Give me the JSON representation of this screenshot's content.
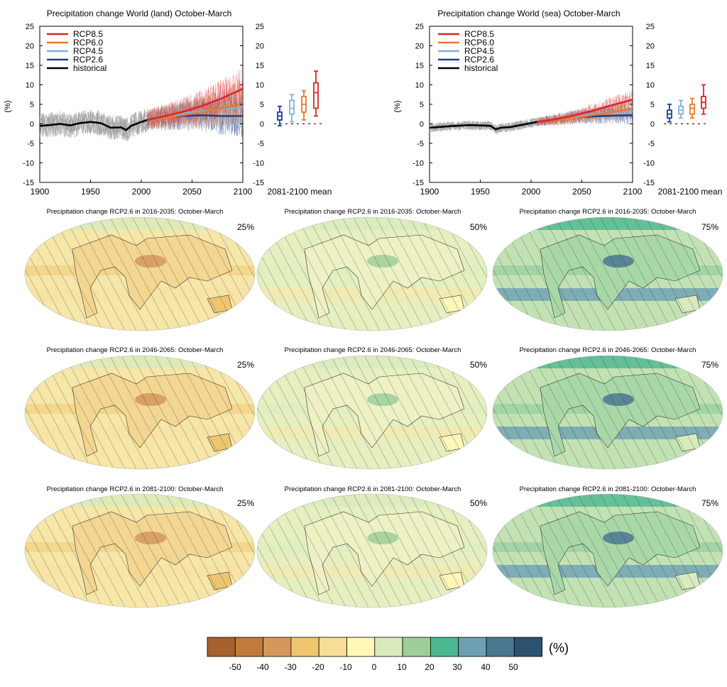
{
  "ts_panels": [
    {
      "title": "Precipitation change World (land) October-March",
      "ylabel": "(%)",
      "mean_label": "2081-2100 mean",
      "xlim": [
        1900,
        2100
      ],
      "ylim": [
        -15,
        25
      ],
      "xticks": [
        1900,
        1950,
        2000,
        2050,
        2100
      ],
      "yticks": [
        -15,
        -10,
        -5,
        0,
        5,
        10,
        15,
        20,
        25
      ],
      "noise_hist": 3.2,
      "noise_fut": 4.5,
      "series": [
        {
          "name": "RCP8.5",
          "color": "#d62728",
          "x": [
            2006,
            2020,
            2040,
            2060,
            2080,
            2100
          ],
          "y": [
            1.0,
            1.8,
            3.0,
            4.6,
            6.6,
            9.0
          ]
        },
        {
          "name": "RCP6.0",
          "color": "#e8792e",
          "x": [
            2006,
            2020,
            2040,
            2060,
            2080,
            2100
          ],
          "y": [
            1.0,
            1.4,
            2.2,
            3.0,
            4.0,
            5.2
          ]
        },
        {
          "name": "RCP4.5",
          "color": "#7fb2dc",
          "x": [
            2006,
            2020,
            2040,
            2060,
            2080,
            2100
          ],
          "y": [
            1.0,
            1.6,
            2.6,
            3.2,
            3.8,
            4.2
          ]
        },
        {
          "name": "RCP2.6",
          "color": "#1f3f8f",
          "x": [
            2006,
            2020,
            2040,
            2060,
            2080,
            2100
          ],
          "y": [
            1.0,
            1.6,
            2.0,
            2.2,
            2.0,
            2.0
          ]
        },
        {
          "name": "historical",
          "color": "#000000",
          "x": [
            1900,
            1910,
            1920,
            1930,
            1940,
            1950,
            1960,
            1970,
            1980,
            1985,
            1990,
            2000,
            2006
          ],
          "y": [
            -0.5,
            -0.3,
            0.0,
            -0.4,
            0.2,
            0.5,
            0.2,
            -1.0,
            -0.9,
            -1.6,
            -0.5,
            0.5,
            1.0
          ]
        }
      ],
      "boxes": [
        {
          "name": "RCP2.6",
          "color": "#1f3f8f",
          "min": -0.5,
          "q1": 1.0,
          "median": 2.0,
          "q3": 3.0,
          "max": 4.5
        },
        {
          "name": "RCP4.5",
          "color": "#7fb2dc",
          "min": 0.5,
          "q1": 2.5,
          "median": 4.0,
          "q3": 6.0,
          "max": 7.5
        },
        {
          "name": "RCP6.0",
          "color": "#e8792e",
          "min": 1.0,
          "q1": 3.0,
          "median": 5.0,
          "q3": 7.0,
          "max": 8.5
        },
        {
          "name": "RCP8.5",
          "color": "#d62728",
          "min": 2.0,
          "q1": 4.0,
          "median": 8.0,
          "q3": 10.5,
          "max": 13.5
        }
      ]
    },
    {
      "title": "Precipitation change World (sea) October-March",
      "ylabel": "(%)",
      "mean_label": "2081-2100 mean",
      "xlim": [
        1900,
        2100
      ],
      "ylim": [
        -15,
        25
      ],
      "xticks": [
        1900,
        1950,
        2000,
        2050,
        2100
      ],
      "yticks": [
        -15,
        -10,
        -5,
        0,
        5,
        10,
        15,
        20,
        25
      ],
      "noise_hist": 1.2,
      "noise_fut": 2.0,
      "series": [
        {
          "name": "RCP8.5",
          "color": "#d62728",
          "x": [
            2006,
            2020,
            2040,
            2060,
            2080,
            2100
          ],
          "y": [
            0.5,
            1.0,
            2.0,
            3.3,
            4.8,
            6.2
          ]
        },
        {
          "name": "RCP6.0",
          "color": "#e8792e",
          "x": [
            2006,
            2020,
            2040,
            2060,
            2080,
            2100
          ],
          "y": [
            0.5,
            0.8,
            1.4,
            2.2,
            3.0,
            3.9
          ]
        },
        {
          "name": "RCP4.5",
          "color": "#7fb2dc",
          "x": [
            2006,
            2020,
            2040,
            2060,
            2080,
            2100
          ],
          "y": [
            0.5,
            0.9,
            1.7,
            2.5,
            3.0,
            3.3
          ]
        },
        {
          "name": "RCP2.6",
          "color": "#1f3f8f",
          "x": [
            2006,
            2020,
            2040,
            2060,
            2080,
            2100
          ],
          "y": [
            0.5,
            1.0,
            1.6,
            1.9,
            2.1,
            2.2
          ]
        },
        {
          "name": "historical",
          "color": "#000000",
          "x": [
            1900,
            1920,
            1940,
            1960,
            1965,
            1970,
            1980,
            1990,
            2000,
            2006
          ],
          "y": [
            -1.0,
            -0.6,
            -0.3,
            -0.5,
            -1.4,
            -1.0,
            -0.8,
            -0.3,
            0.2,
            0.5
          ]
        }
      ],
      "boxes": [
        {
          "name": "RCP2.6",
          "color": "#1f3f8f",
          "min": 0.5,
          "q1": 1.5,
          "median": 2.5,
          "q3": 3.5,
          "max": 5.0
        },
        {
          "name": "RCP4.5",
          "color": "#7fb2dc",
          "min": 1.5,
          "q1": 2.5,
          "median": 3.5,
          "q3": 4.5,
          "max": 6.0
        },
        {
          "name": "RCP6.0",
          "color": "#e8792e",
          "min": 1.5,
          "q1": 2.5,
          "median": 4.0,
          "q3": 5.0,
          "max": 6.5
        },
        {
          "name": "RCP8.5",
          "color": "#d62728",
          "min": 2.5,
          "q1": 4.0,
          "median": 5.5,
          "q3": 7.0,
          "max": 10.0
        }
      ]
    }
  ],
  "map_titles": [
    "Precipitation change RCP2.6 in 2016-2035: October-March",
    "Precipitation change RCP2.6 in 2046-2065: October-March",
    "Precipitation change RCP2.6 in 2081-2100: October-March"
  ],
  "percentiles": [
    "25%",
    "50%",
    "75%"
  ],
  "colorbar": {
    "unit": "(%)",
    "tick_labels": [
      "-50",
      "-40",
      "-30",
      "-20",
      "-10",
      "0",
      "10",
      "20",
      "30",
      "40",
      "50"
    ],
    "colors": [
      "#a6612e",
      "#bf7a3c",
      "#d3985a",
      "#efc670",
      "#f6de95",
      "#fff7b8",
      "#d9ebbd",
      "#9ccf99",
      "#4db891",
      "#6ea0b4",
      "#4a7891",
      "#2c5270"
    ]
  },
  "chart_data": [
    {
      "type": "line",
      "title": "Precipitation change World (land) October-March",
      "ylabel": "(%)",
      "xlim": [
        1900,
        2100
      ],
      "ylim": [
        -15,
        25
      ],
      "legend": "top-left",
      "series": [
        {
          "name": "RCP8.5",
          "x": [
            2006,
            2020,
            2040,
            2060,
            2080,
            2100
          ],
          "y": [
            1.0,
            1.8,
            3.0,
            4.6,
            6.6,
            9.0
          ]
        },
        {
          "name": "RCP6.0",
          "x": [
            2006,
            2020,
            2040,
            2060,
            2080,
            2100
          ],
          "y": [
            1.0,
            1.4,
            2.2,
            3.0,
            4.0,
            5.2
          ]
        },
        {
          "name": "RCP4.5",
          "x": [
            2006,
            2020,
            2040,
            2060,
            2080,
            2100
          ],
          "y": [
            1.0,
            1.6,
            2.6,
            3.2,
            3.8,
            4.2
          ]
        },
        {
          "name": "RCP2.6",
          "x": [
            2006,
            2020,
            2040,
            2060,
            2080,
            2100
          ],
          "y": [
            1.0,
            1.6,
            2.0,
            2.2,
            2.0,
            2.0
          ]
        },
        {
          "name": "historical",
          "x": [
            1900,
            1910,
            1920,
            1930,
            1940,
            1950,
            1960,
            1970,
            1980,
            1985,
            1990,
            2000,
            2006
          ],
          "y": [
            -0.5,
            -0.3,
            0.0,
            -0.4,
            0.2,
            0.5,
            0.2,
            -1.0,
            -0.9,
            -1.6,
            -0.5,
            0.5,
            1.0
          ]
        }
      ]
    },
    {
      "type": "line",
      "title": "Precipitation change World (sea) October-March",
      "ylabel": "(%)",
      "xlim": [
        1900,
        2100
      ],
      "ylim": [
        -15,
        25
      ],
      "legend": "top-left",
      "series": [
        {
          "name": "RCP8.5",
          "x": [
            2006,
            2020,
            2040,
            2060,
            2080,
            2100
          ],
          "y": [
            0.5,
            1.0,
            2.0,
            3.3,
            4.8,
            6.2
          ]
        },
        {
          "name": "RCP6.0",
          "x": [
            2006,
            2020,
            2040,
            2060,
            2080,
            2100
          ],
          "y": [
            0.5,
            0.8,
            1.4,
            2.2,
            3.0,
            3.9
          ]
        },
        {
          "name": "RCP4.5",
          "x": [
            2006,
            2020,
            2040,
            2060,
            2080,
            2100
          ],
          "y": [
            0.5,
            0.9,
            1.7,
            2.5,
            3.0,
            3.3
          ]
        },
        {
          "name": "RCP2.6",
          "x": [
            2006,
            2020,
            2040,
            2060,
            2080,
            2100
          ],
          "y": [
            0.5,
            1.0,
            1.6,
            1.9,
            2.1,
            2.2
          ]
        },
        {
          "name": "historical",
          "x": [
            1900,
            1920,
            1940,
            1960,
            1965,
            1970,
            1980,
            1990,
            2000,
            2006
          ],
          "y": [
            -1.0,
            -0.6,
            -0.3,
            -0.5,
            -1.4,
            -1.0,
            -0.8,
            -0.3,
            0.2,
            0.5
          ]
        }
      ]
    },
    {
      "type": "heatmap",
      "title": "Precipitation change RCP2.6 (2016-2035, 2046-2065, 2081-2100): October-March, 25% / 50% / 75%",
      "legend": "bottom",
      "value_range": [
        -50,
        50
      ]
    }
  ]
}
